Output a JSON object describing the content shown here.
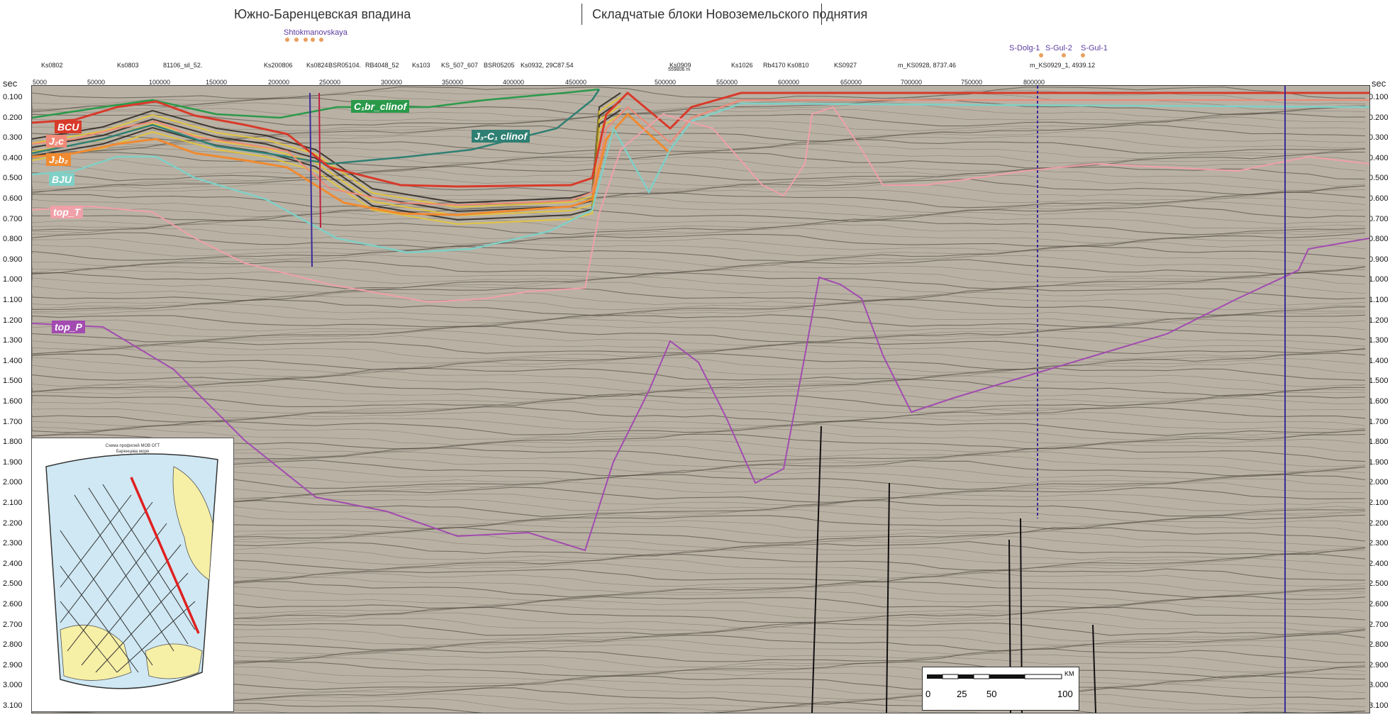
{
  "regions": [
    {
      "title": "Южно-Баренцевская впадина"
    },
    {
      "title": "Складчатые блоки Новоземельского поднятия"
    }
  ],
  "wells_top": [
    {
      "name": "Shtokmanovskaya"
    },
    {
      "name": "S-Dolg-1"
    },
    {
      "name": "S-Gul-2"
    },
    {
      "name": "S-Gul-1"
    }
  ],
  "profiles": [
    "Ks0802",
    "Ks0803",
    "81106_sil_52.",
    "Ks200806",
    "Ks0824",
    "BSR05104.",
    "RB4048_52",
    "Ks103",
    "KS_507_607",
    "BSR05205",
    "Ks0932, 29C87.54",
    "Ks0909",
    "Ks1026",
    "Rb4170",
    "Ks0810",
    "KS0927",
    "m_KS0928, 8737.46",
    "m_KS0929_1, 4939.12"
  ],
  "profile_sub": "559806 m",
  "cdp": [
    "5000",
    "50000",
    "100000",
    "150000",
    "200000",
    "250000",
    "300000",
    "350000",
    "400000",
    "450000",
    "500000",
    "550000",
    "600000",
    "650000",
    "700000",
    "750000",
    "800000"
  ],
  "axis_unit": "sec",
  "time_ticks": [
    "0.100",
    "0.200",
    "0.300",
    "0.400",
    "0.500",
    "0.600",
    "0.700",
    "0.800",
    "0.900",
    "1.000",
    "1.100",
    "1.200",
    "1.300",
    "1.400",
    "1.500",
    "1.600",
    "1.700",
    "1.800",
    "1.900",
    "2.000",
    "2.100",
    "2.200",
    "2.300",
    "2.400",
    "2.500",
    "2.600",
    "2.700",
    "2.800",
    "2.900",
    "3.000",
    "3.100"
  ],
  "horizons": [
    {
      "label": "C₁br_clinof",
      "color": "#2a9a4a"
    },
    {
      "label": "J₃-C₁ clinof",
      "color": "#2f7f73"
    },
    {
      "label": "BCU",
      "color": "#d83a2a"
    },
    {
      "label": "J₂c",
      "color": "#f08a78"
    },
    {
      "label": "J₂b₂",
      "color": "#f08a30"
    },
    {
      "label": "BJU",
      "color": "#7fd0c6"
    },
    {
      "label": "top_T",
      "color": "#f0a0a8"
    },
    {
      "label": "top_P",
      "color": "#a24bb0"
    }
  ],
  "inset": {
    "title_line1": "Схема профилей МОВ ОГТ",
    "title_line2": "Баренцева моря"
  },
  "scale": {
    "unit": "KM",
    "labels": [
      "0",
      "25",
      "50",
      "100"
    ]
  }
}
